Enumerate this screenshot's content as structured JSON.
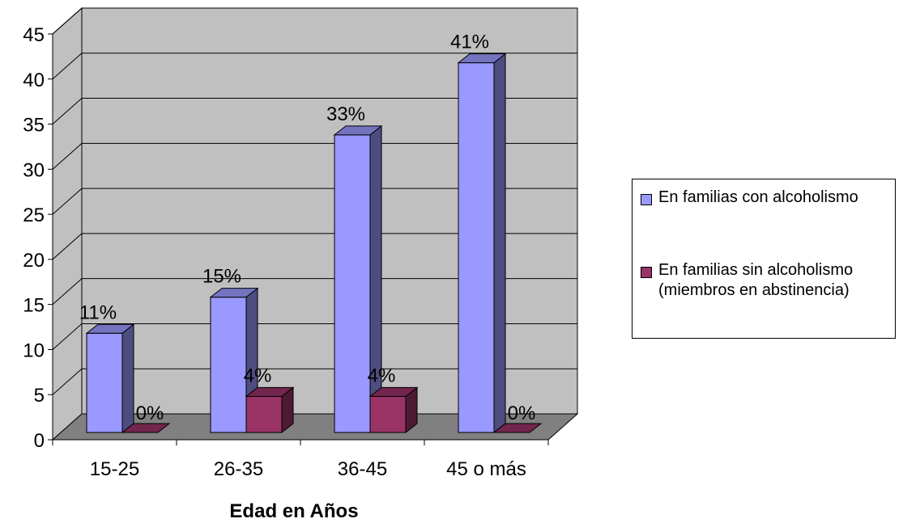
{
  "chart_data": {
    "type": "bar",
    "xlabel": "Edad en Años",
    "ylabel": "",
    "ylim": [
      0,
      45
    ],
    "yticks": [
      0,
      5,
      10,
      15,
      20,
      25,
      30,
      35,
      40,
      45
    ],
    "categories": [
      "15-25",
      "26-35",
      "36-45",
      "45 o más"
    ],
    "series": [
      {
        "name": "En familias con alcoholismo",
        "values": [
          11,
          15,
          33,
          41
        ],
        "labels": [
          "11%",
          "15%",
          "33%",
          "41%"
        ],
        "color": "#9999ff"
      },
      {
        "name": "En familias sin alcoholismo (miembros en abstinencia)",
        "values": [
          0,
          4,
          4,
          0
        ],
        "labels": [
          "0%",
          "4%",
          "4%",
          "0%"
        ],
        "color": "#993366"
      }
    ],
    "grid": true,
    "legend_position": "right",
    "style": "3d",
    "wall_color": "#c0c0c0",
    "floor_color": "#808080"
  }
}
